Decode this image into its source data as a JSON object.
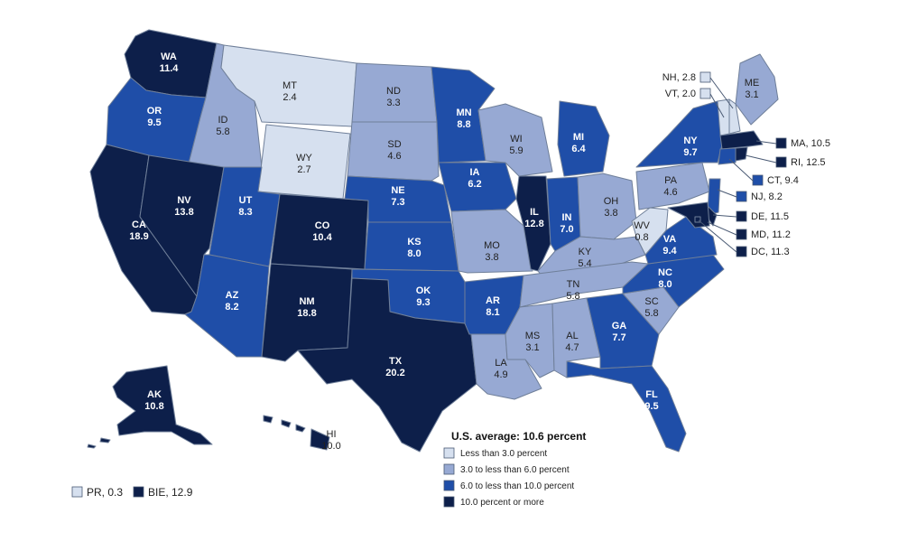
{
  "colors": {
    "c1": "#d6e0ef",
    "c2": "#97a9d3",
    "c3": "#1f4ea8",
    "c4": "#0d1f4a"
  },
  "legend": {
    "title": "U.S. average: 10.6 percent",
    "items": [
      {
        "cls": "c1",
        "label": "Less than 3.0 percent"
      },
      {
        "cls": "c2",
        "label": "3.0 to less than 6.0 percent"
      },
      {
        "cls": "c3",
        "label": "6.0 to less than 10.0 percent"
      },
      {
        "cls": "c4",
        "label": "10.0 percent or more"
      }
    ]
  },
  "territories": [
    {
      "id": "PR",
      "label": "PR, 0.3",
      "cls": "c1"
    },
    {
      "id": "BIE",
      "label": "BIE, 12.9",
      "cls": "c4"
    }
  ],
  "states": {
    "WA": {
      "abbr": "WA",
      "value": "11.4",
      "cls": "c4"
    },
    "OR": {
      "abbr": "OR",
      "value": "9.5",
      "cls": "c3"
    },
    "CA": {
      "abbr": "CA",
      "value": "18.9",
      "cls": "c4"
    },
    "ID": {
      "abbr": "ID",
      "value": "5.8",
      "cls": "c2"
    },
    "NV": {
      "abbr": "NV",
      "value": "13.8",
      "cls": "c4"
    },
    "MT": {
      "abbr": "MT",
      "value": "2.4",
      "cls": "c1"
    },
    "WY": {
      "abbr": "WY",
      "value": "2.7",
      "cls": "c1"
    },
    "UT": {
      "abbr": "UT",
      "value": "8.3",
      "cls": "c3"
    },
    "AZ": {
      "abbr": "AZ",
      "value": "8.2",
      "cls": "c3"
    },
    "CO": {
      "abbr": "CO",
      "value": "10.4",
      "cls": "c4"
    },
    "NM": {
      "abbr": "NM",
      "value": "18.8",
      "cls": "c4"
    },
    "ND": {
      "abbr": "ND",
      "value": "3.3",
      "cls": "c2"
    },
    "SD": {
      "abbr": "SD",
      "value": "4.6",
      "cls": "c2"
    },
    "NE": {
      "abbr": "NE",
      "value": "7.3",
      "cls": "c3"
    },
    "KS": {
      "abbr": "KS",
      "value": "8.0",
      "cls": "c3"
    },
    "OK": {
      "abbr": "OK",
      "value": "9.3",
      "cls": "c3"
    },
    "TX": {
      "abbr": "TX",
      "value": "20.2",
      "cls": "c4"
    },
    "MN": {
      "abbr": "MN",
      "value": "8.8",
      "cls": "c3"
    },
    "IA": {
      "abbr": "IA",
      "value": "6.2",
      "cls": "c3"
    },
    "MO": {
      "abbr": "MO",
      "value": "3.8",
      "cls": "c2"
    },
    "AR": {
      "abbr": "AR",
      "value": "8.1",
      "cls": "c3"
    },
    "LA": {
      "abbr": "LA",
      "value": "4.9",
      "cls": "c2"
    },
    "WI": {
      "abbr": "WI",
      "value": "5.9",
      "cls": "c2"
    },
    "IL": {
      "abbr": "IL",
      "value": "12.8",
      "cls": "c4"
    },
    "MI": {
      "abbr": "MI",
      "value": "6.4",
      "cls": "c3"
    },
    "IN": {
      "abbr": "IN",
      "value": "7.0",
      "cls": "c3"
    },
    "OH": {
      "abbr": "OH",
      "value": "3.8",
      "cls": "c2"
    },
    "KY": {
      "abbr": "KY",
      "value": "5.4",
      "cls": "c2"
    },
    "TN": {
      "abbr": "TN",
      "value": "5.8",
      "cls": "c2"
    },
    "MS": {
      "abbr": "MS",
      "value": "3.1",
      "cls": "c2"
    },
    "AL": {
      "abbr": "AL",
      "value": "4.7",
      "cls": "c2"
    },
    "GA": {
      "abbr": "GA",
      "value": "7.7",
      "cls": "c3"
    },
    "FL": {
      "abbr": "FL",
      "value": "9.5",
      "cls": "c3"
    },
    "SC": {
      "abbr": "SC",
      "value": "5.8",
      "cls": "c2"
    },
    "NC": {
      "abbr": "NC",
      "value": "8.0",
      "cls": "c3"
    },
    "VA": {
      "abbr": "VA",
      "value": "9.4",
      "cls": "c3"
    },
    "WV": {
      "abbr": "WV",
      "value": "0.8",
      "cls": "c1"
    },
    "PA": {
      "abbr": "PA",
      "value": "4.6",
      "cls": "c2"
    },
    "NY": {
      "abbr": "NY",
      "value": "9.7",
      "cls": "c3"
    },
    "ME": {
      "abbr": "ME",
      "value": "3.1",
      "cls": "c2"
    },
    "AK": {
      "abbr": "AK",
      "value": "10.8",
      "cls": "c4"
    },
    "HI": {
      "abbr": "HI",
      "value": "10.0",
      "cls": "c4"
    },
    "NH": {
      "abbr": "NH",
      "value": "2.8",
      "cls": "c1"
    },
    "VT": {
      "abbr": "VT",
      "value": "2.0",
      "cls": "c1"
    },
    "MA": {
      "abbr": "MA",
      "value": "10.5",
      "cls": "c4"
    },
    "RI": {
      "abbr": "RI",
      "value": "12.5",
      "cls": "c4"
    },
    "CT": {
      "abbr": "CT",
      "value": "9.4",
      "cls": "c3"
    },
    "NJ": {
      "abbr": "NJ",
      "value": "8.2",
      "cls": "c3"
    },
    "DE": {
      "abbr": "DE",
      "value": "11.5",
      "cls": "c4"
    },
    "MD": {
      "abbr": "MD",
      "value": "11.2",
      "cls": "c4"
    },
    "DC": {
      "abbr": "DC",
      "value": "11.3",
      "cls": "c4"
    }
  },
  "callouts": {
    "NH": "NH, 2.8",
    "VT": "VT, 2.0",
    "MA": "MA, 10.5",
    "RI": "RI, 12.5",
    "CT": "CT, 9.4",
    "NJ": "NJ, 8.2",
    "DE": "DE, 11.5",
    "MD": "MD, 11.2",
    "DC": "DC, 11.3"
  }
}
